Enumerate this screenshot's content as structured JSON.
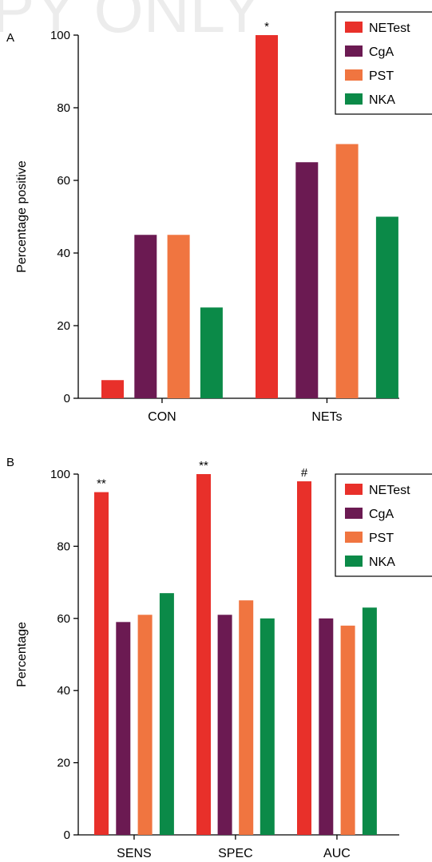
{
  "watermark_text": "PY ONLY",
  "colors": {
    "NETest": "#e8302a",
    "CgA": "#6b1a52",
    "PST": "#f07540",
    "NKA": "#0b8a48"
  },
  "chart_data": [
    {
      "panel": "A",
      "type": "bar",
      "title": "",
      "xlabel": "",
      "ylabel": "Percentage positive",
      "ylim": [
        0,
        100
      ],
      "yticks": [
        "0",
        "20",
        "40",
        "60",
        "80",
        "100"
      ],
      "categories": [
        "CON",
        "NETs"
      ],
      "series": [
        {
          "name": "NETest",
          "values": [
            5,
            100
          ]
        },
        {
          "name": "CgA",
          "values": [
            45,
            65
          ]
        },
        {
          "name": "PST",
          "values": [
            45,
            70
          ]
        },
        {
          "name": "NKA",
          "values": [
            25,
            50
          ]
        }
      ],
      "annotations": [
        {
          "category": "NETs",
          "series": "NETest",
          "text": "*"
        }
      ],
      "legend": {
        "position": "top-right",
        "items": [
          "NETest",
          "CgA",
          "PST",
          "NKA"
        ]
      },
      "grid": false
    },
    {
      "panel": "B",
      "type": "bar",
      "title": "",
      "xlabel": "",
      "ylabel": "Percentage",
      "ylim": [
        0,
        100
      ],
      "yticks": [
        "0",
        "20",
        "40",
        "60",
        "80",
        "100"
      ],
      "categories": [
        "SENS",
        "SPEC",
        "AUC"
      ],
      "series": [
        {
          "name": "NETest",
          "values": [
            95,
            100,
            98
          ]
        },
        {
          "name": "CgA",
          "values": [
            59,
            61,
            60
          ]
        },
        {
          "name": "PST",
          "values": [
            61,
            65,
            58
          ]
        },
        {
          "name": "NKA",
          "values": [
            67,
            60,
            63
          ]
        }
      ],
      "annotations": [
        {
          "category": "SENS",
          "series": "NETest",
          "text": "**"
        },
        {
          "category": "SPEC",
          "series": "NETest",
          "text": "**"
        },
        {
          "category": "AUC",
          "series": "NETest",
          "text": "#"
        }
      ],
      "legend": {
        "position": "top-right",
        "items": [
          "NETest",
          "CgA",
          "PST",
          "NKA"
        ]
      },
      "grid": false
    }
  ]
}
